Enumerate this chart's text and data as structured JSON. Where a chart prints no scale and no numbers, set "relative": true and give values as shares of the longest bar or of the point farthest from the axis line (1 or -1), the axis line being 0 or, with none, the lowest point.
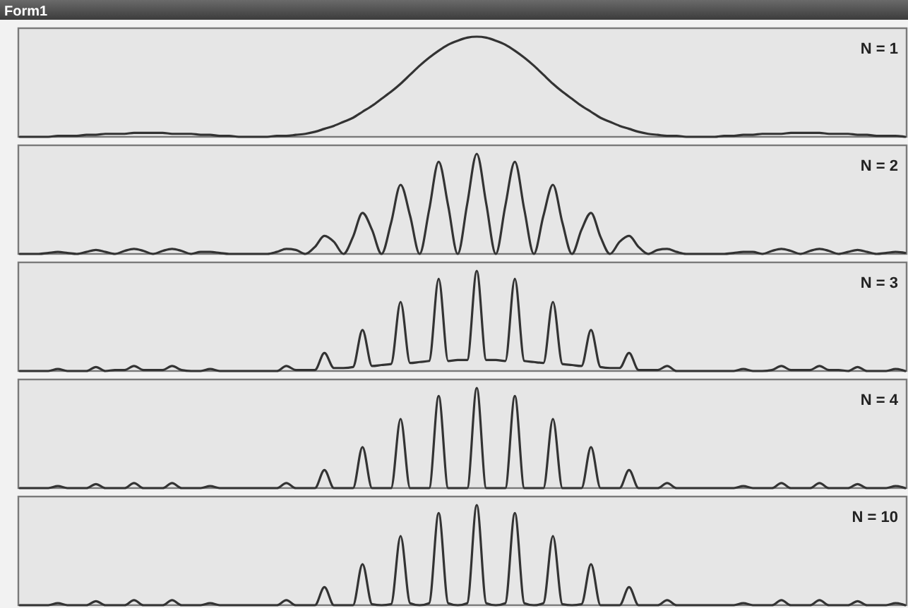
{
  "chart_data": [
    {
      "type": "line",
      "title": "Form1",
      "relative": true,
      "legend": "top right",
      "categories": [
        null,
        null,
        null,
        null,
        null,
        null,
        null,
        null,
        null,
        null,
        null,
        null,
        null,
        null,
        null,
        null,
        null,
        null,
        null,
        null,
        null,
        null,
        null,
        null,
        null,
        null,
        null,
        null,
        null,
        null,
        null,
        null,
        null,
        null,
        null,
        null,
        null,
        null,
        null,
        null,
        null,
        null,
        null,
        null,
        null,
        null,
        null,
        null,
        null,
        null,
        null,
        null,
        null,
        null,
        null,
        null,
        null,
        null,
        null,
        null,
        null,
        null,
        null,
        null,
        null,
        null,
        null,
        null,
        null,
        null,
        null,
        null,
        null,
        null,
        null,
        null,
        null,
        null,
        null,
        null,
        null,
        null,
        null,
        null,
        null,
        null,
        null,
        null,
        null,
        null,
        null,
        null,
        null,
        null
      ],
      "series": [
        {
          "name": "N = 1",
          "color": "#333333",
          "values": [
            0,
            0,
            0,
            0,
            0.01,
            0.01,
            0.01,
            0.02,
            0.02,
            0.03,
            0.03,
            0.03,
            0.04,
            0.04,
            0.04,
            0.04,
            0.03,
            0.03,
            0.03,
            0.02,
            0.02,
            0.01,
            0.01,
            0,
            0,
            0,
            0,
            0.01,
            0.01,
            0.02,
            0.03,
            0.05,
            0.08,
            0.11,
            0.15,
            0.19,
            0.25,
            0.31,
            0.38,
            0.45,
            0.53,
            0.62,
            0.71,
            0.79,
            0.86,
            0.92,
            0.96,
            0.99,
            1,
            0.99,
            0.96,
            0.92,
            0.86,
            0.79,
            0.71,
            0.62,
            0.53,
            0.45,
            0.38,
            0.31,
            0.25,
            0.19,
            0.15,
            0.11,
            0.08,
            0.05,
            0.03,
            0.02,
            0.01,
            0.01,
            0,
            0,
            0,
            0,
            0.01,
            0.01,
            0.02,
            0.02,
            0.03,
            0.03,
            0.03,
            0.04,
            0.04,
            0.04,
            0.04,
            0.03,
            0.03,
            0.03,
            0.02,
            0.02,
            0.01,
            0.01,
            0.01,
            0
          ]
        }
      ]
    },
    {
      "type": "line",
      "relative": true,
      "legend": "top right",
      "categories": [
        null,
        null,
        null,
        null,
        null,
        null,
        null,
        null,
        null,
        null,
        null,
        null,
        null,
        null,
        null,
        null,
        null,
        null,
        null,
        null,
        null,
        null,
        null,
        null,
        null,
        null,
        null,
        null,
        null,
        null,
        null,
        null,
        null,
        null,
        null,
        null,
        null,
        null,
        null,
        null,
        null,
        null,
        null,
        null,
        null,
        null,
        null,
        null,
        null,
        null,
        null,
        null,
        null,
        null,
        null,
        null,
        null,
        null,
        null,
        null,
        null,
        null,
        null,
        null,
        null,
        null,
        null,
        null,
        null,
        null,
        null,
        null,
        null,
        null,
        null,
        null,
        null,
        null,
        null,
        null,
        null,
        null,
        null,
        null,
        null,
        null,
        null,
        null,
        null,
        null,
        null,
        null,
        null,
        null
      ],
      "series": [
        {
          "name": "N = 2",
          "color": "#333333",
          "values": [
            0,
            0,
            0,
            0.01,
            0.02,
            0.01,
            0,
            0.02,
            0.04,
            0.02,
            0,
            0.03,
            0.05,
            0.03,
            0,
            0.03,
            0.05,
            0.03,
            0,
            0.02,
            0.02,
            0.01,
            0,
            0,
            0,
            0,
            0,
            0.02,
            0.05,
            0.04,
            0,
            0.07,
            0.18,
            0.12,
            0,
            0.17,
            0.41,
            0.24,
            0,
            0.31,
            0.69,
            0.38,
            0,
            0.44,
            0.92,
            0.48,
            0,
            0.5,
            1,
            0.5,
            0,
            0.48,
            0.92,
            0.44,
            0,
            0.38,
            0.69,
            0.31,
            0,
            0.24,
            0.41,
            0.17,
            0,
            0.12,
            0.18,
            0.07,
            0,
            0.04,
            0.05,
            0.02,
            0,
            0,
            0,
            0,
            0,
            0.01,
            0.02,
            0.02,
            0,
            0.03,
            0.05,
            0.03,
            0,
            0.03,
            0.05,
            0.03,
            0,
            0.02,
            0.04,
            0.02,
            0,
            0.01,
            0.02,
            0.01
          ]
        }
      ]
    },
    {
      "type": "line",
      "relative": true,
      "legend": "top right",
      "categories": [
        null,
        null,
        null,
        null,
        null,
        null,
        null,
        null,
        null,
        null,
        null,
        null,
        null,
        null,
        null,
        null,
        null,
        null,
        null,
        null,
        null,
        null,
        null,
        null,
        null,
        null,
        null,
        null,
        null,
        null,
        null,
        null,
        null,
        null,
        null,
        null,
        null,
        null,
        null,
        null,
        null,
        null,
        null,
        null,
        null,
        null,
        null,
        null,
        null,
        null,
        null,
        null,
        null,
        null,
        null,
        null,
        null,
        null,
        null,
        null,
        null,
        null,
        null,
        null,
        null,
        null,
        null,
        null,
        null,
        null,
        null,
        null,
        null,
        null,
        null,
        null,
        null,
        null,
        null,
        null,
        null,
        null,
        null,
        null,
        null,
        null,
        null,
        null,
        null,
        null,
        null,
        null,
        null,
        null
      ],
      "series": [
        {
          "name": "N = 3",
          "color": "#333333",
          "values": [
            0,
            0,
            0,
            0,
            0.02,
            0,
            0,
            0,
            0.04,
            0,
            0.01,
            0.01,
            0.05,
            0.01,
            0.01,
            0.01,
            0.05,
            0.01,
            0,
            0,
            0.02,
            0,
            0,
            0,
            0,
            0,
            0,
            0,
            0.05,
            0.01,
            0.01,
            0.01,
            0.18,
            0.03,
            0.03,
            0.04,
            0.41,
            0.05,
            0.06,
            0.07,
            0.69,
            0.08,
            0.09,
            0.1,
            0.92,
            0.1,
            0.11,
            0.11,
            1,
            0.11,
            0.11,
            0.1,
            0.92,
            0.1,
            0.09,
            0.08,
            0.69,
            0.07,
            0.06,
            0.05,
            0.41,
            0.04,
            0.03,
            0.03,
            0.18,
            0.01,
            0.01,
            0.01,
            0.05,
            0,
            0,
            0,
            0,
            0,
            0,
            0,
            0.02,
            0,
            0,
            0.01,
            0.05,
            0.01,
            0.01,
            0.01,
            0.05,
            0.01,
            0.01,
            0,
            0.04,
            0,
            0,
            0,
            0.02,
            0
          ]
        }
      ]
    },
    {
      "type": "line",
      "relative": true,
      "legend": "top right",
      "categories": [
        null,
        null,
        null,
        null,
        null,
        null,
        null,
        null,
        null,
        null,
        null,
        null,
        null,
        null,
        null,
        null,
        null,
        null,
        null,
        null,
        null,
        null,
        null,
        null,
        null,
        null,
        null,
        null,
        null,
        null,
        null,
        null,
        null,
        null,
        null,
        null,
        null,
        null,
        null,
        null,
        null,
        null,
        null,
        null,
        null,
        null,
        null,
        null,
        null,
        null,
        null,
        null,
        null,
        null,
        null,
        null,
        null,
        null,
        null,
        null,
        null,
        null,
        null,
        null,
        null,
        null,
        null,
        null,
        null,
        null,
        null,
        null,
        null,
        null,
        null,
        null,
        null,
        null,
        null,
        null,
        null,
        null,
        null,
        null,
        null,
        null,
        null,
        null,
        null,
        null,
        null,
        null,
        null,
        null
      ],
      "series": [
        {
          "name": "N = 4",
          "color": "#333333",
          "values": [
            0,
            0,
            0,
            0,
            0.02,
            0,
            0,
            0,
            0.04,
            0,
            0,
            0,
            0.05,
            0,
            0,
            0,
            0.05,
            0,
            0,
            0,
            0.02,
            0,
            0,
            0,
            0,
            0,
            0,
            0,
            0.05,
            0,
            0,
            0,
            0.18,
            0,
            0,
            0,
            0.41,
            0,
            0,
            0,
            0.69,
            0,
            0,
            0,
            0.92,
            0,
            0,
            0,
            1,
            0,
            0,
            0,
            0.92,
            0,
            0,
            0,
            0.69,
            0,
            0,
            0,
            0.41,
            0,
            0,
            0,
            0.18,
            0,
            0,
            0,
            0.05,
            0,
            0,
            0,
            0,
            0,
            0,
            0,
            0.02,
            0,
            0,
            0,
            0.05,
            0,
            0,
            0,
            0.05,
            0,
            0,
            0,
            0.04,
            0,
            0,
            0,
            0.02,
            0
          ]
        }
      ]
    },
    {
      "type": "line",
      "relative": true,
      "legend": "top right",
      "categories": [
        null,
        null,
        null,
        null,
        null,
        null,
        null,
        null,
        null,
        null,
        null,
        null,
        null,
        null,
        null,
        null,
        null,
        null,
        null,
        null,
        null,
        null,
        null,
        null,
        null,
        null,
        null,
        null,
        null,
        null,
        null,
        null,
        null,
        null,
        null,
        null,
        null,
        null,
        null,
        null,
        null,
        null,
        null,
        null,
        null,
        null,
        null,
        null,
        null,
        null,
        null,
        null,
        null,
        null,
        null,
        null,
        null,
        null,
        null,
        null,
        null,
        null,
        null,
        null,
        null,
        null,
        null,
        null,
        null,
        null,
        null,
        null,
        null,
        null,
        null,
        null,
        null,
        null,
        null,
        null,
        null,
        null,
        null,
        null,
        null,
        null,
        null,
        null,
        null,
        null,
        null,
        null,
        null,
        null
      ],
      "series": [
        {
          "name": "N = 10",
          "color": "#333333",
          "values": [
            0,
            0,
            0,
            0,
            0.02,
            0,
            0,
            0,
            0.04,
            0,
            0,
            0,
            0.05,
            0,
            0,
            0,
            0.05,
            0,
            0,
            0,
            0.02,
            0,
            0,
            0,
            0,
            0,
            0,
            0,
            0.05,
            0,
            0,
            0,
            0.18,
            0,
            0,
            0,
            0.41,
            0.01,
            0,
            0.01,
            0.69,
            0.02,
            0,
            0.02,
            0.92,
            0.02,
            0,
            0.02,
            1,
            0.02,
            0,
            0.02,
            0.92,
            0.02,
            0,
            0.02,
            0.69,
            0.01,
            0,
            0.01,
            0.41,
            0,
            0,
            0,
            0.18,
            0,
            0,
            0,
            0.05,
            0,
            0,
            0,
            0,
            0,
            0,
            0,
            0.02,
            0,
            0,
            0,
            0.05,
            0,
            0,
            0,
            0.05,
            0,
            0,
            0,
            0.04,
            0,
            0,
            0,
            0.02,
            0
          ]
        }
      ]
    }
  ]
}
